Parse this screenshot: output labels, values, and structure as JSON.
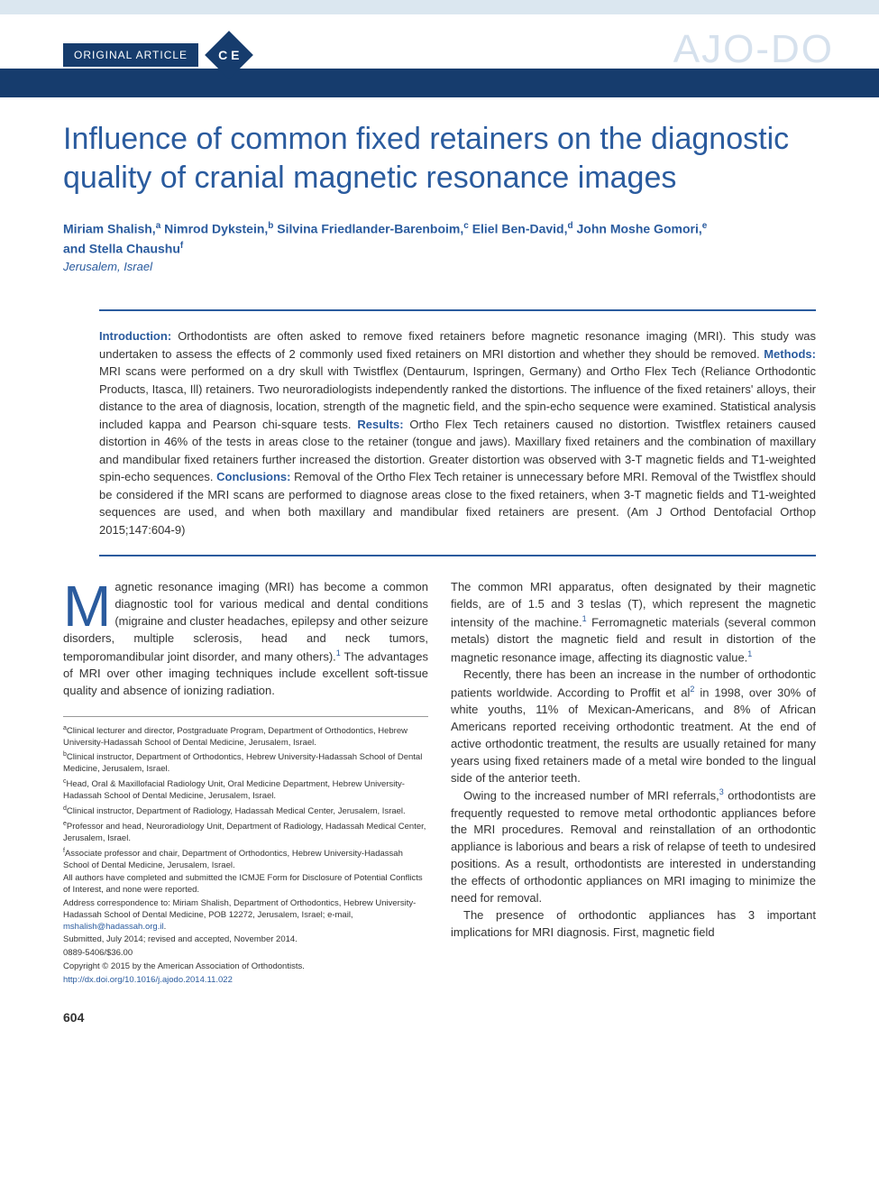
{
  "colors": {
    "brand_blue": "#163c6d",
    "text_blue": "#2a5b9e",
    "light_blue": "#dbe7f0",
    "logo_ghost": "#d6e1ed"
  },
  "header": {
    "article_type": "ORIGINAL ARTICLE",
    "ce_badge": "C E",
    "journal_logo": "AJO-DO"
  },
  "title": "Influence of common fixed retainers on the diagnostic quality of cranial magnetic resonance images",
  "authors_line1": "Miriam Shalish,",
  "authors_sup1": "a",
  "authors_line2": " Nimrod Dykstein,",
  "authors_sup2": "b",
  "authors_line3": " Silvina Friedlander-Barenboim,",
  "authors_sup3": "c",
  "authors_line4": " Eliel Ben-David,",
  "authors_sup4": "d",
  "authors_line5": " John Moshe Gomori,",
  "authors_sup5": "e",
  "authors_line6": "and Stella Chaushu",
  "authors_sup6": "f",
  "affil_city": "Jerusalem, Israel",
  "abstract": {
    "intro_label": "Introduction: ",
    "intro": "Orthodontists are often asked to remove fixed retainers before magnetic resonance imaging (MRI). This study was undertaken to assess the effects of 2 commonly used fixed retainers on MRI distortion and whether they should be removed. ",
    "methods_label": "Methods: ",
    "methods": "MRI scans were performed on a dry skull with Twistflex (Dentaurum, Ispringen, Germany) and Ortho Flex Tech (Reliance Orthodontic Products, Itasca, Ill) retainers. Two neuroradiologists independently ranked the distortions. The influence of the fixed retainers' alloys, their distance to the area of diagnosis, location, strength of the magnetic field, and the spin-echo sequence were examined. Statistical analysis included kappa and Pearson chi-square tests. ",
    "results_label": "Results: ",
    "results": "Ortho Flex Tech retainers caused no distortion. Twistflex retainers caused distortion in 46% of the tests in areas close to the retainer (tongue and jaws). Maxillary fixed retainers and the combination of maxillary and mandibular fixed retainers further increased the distortion. Greater distortion was observed with 3-T magnetic fields and T1-weighted spin-echo sequences. ",
    "concl_label": "Conclusions: ",
    "concl": "Removal of the Ortho Flex Tech retainer is unnecessary before MRI. Removal of the Twistflex should be considered if the MRI scans are performed to diagnose areas close to the fixed retainers, when 3-T magnetic fields and T1-weighted sequences are used, and when both maxillary and mandibular fixed retainers are present. (Am J Orthod Dentofacial Orthop 2015;147:604-9)"
  },
  "body": {
    "p1_dropcap": "M",
    "p1": "agnetic resonance imaging (MRI) has become a common diagnostic tool for various medical and dental conditions (migraine and cluster headaches, epilepsy and other seizure disorders, multiple sclerosis, head and neck tumors, temporomandibular joint disorder, and many others).",
    "p1_after": " The advantages of MRI over other imaging techniques include excellent soft-tissue quality and absence of ionizing radiation.",
    "p2a": "The common MRI apparatus, often designated by their magnetic fields, are of 1.5 and 3 teslas (T), which represent the magnetic intensity of the machine.",
    "p2b": " Ferromagnetic materials (several common metals) distort the magnetic field and result in distortion of the magnetic resonance image, affecting its diagnostic value.",
    "p3a": "Recently, there has been an increase in the number of orthodontic patients worldwide. According to Proffit et al",
    "p3b": " in 1998, over 30% of white youths, 11% of Mexican-Americans, and 8% of African Americans reported receiving orthodontic treatment. At the end of active orthodontic treatment, the results are usually retained for many years using fixed retainers made of a metal wire bonded to the lingual side of the anterior teeth.",
    "p4a": "Owing to the increased number of MRI referrals,",
    "p4b": " orthodontists are frequently requested to remove metal orthodontic appliances before the MRI procedures. Removal and reinstallation of an orthodontic appliance is laborious and bears a risk of relapse of teeth to undesired positions. As a result, orthodontists are interested in understanding the effects of orthodontic appliances on MRI imaging to minimize the need for removal.",
    "p5": "The presence of orthodontic appliances has 3 important implications for MRI diagnosis. First, magnetic field"
  },
  "refs": {
    "r1": "1",
    "r2": "2",
    "r3": "3"
  },
  "footnotes": {
    "a": "Clinical lecturer and director, Postgraduate Program, Department of Orthodontics, Hebrew University-Hadassah School of Dental Medicine, Jerusalem, Israel.",
    "b": "Clinical instructor, Department of Orthodontics, Hebrew University-Hadassah School of Dental Medicine, Jerusalem, Israel.",
    "c": "Head, Oral & Maxillofacial Radiology Unit, Oral Medicine Department, Hebrew University-Hadassah School of Dental Medicine, Jerusalem, Israel.",
    "d": "Clinical instructor, Department of Radiology, Hadassah Medical Center, Jerusalem, Israel.",
    "e": "Professor and head, Neuroradiology Unit, Department of Radiology, Hadassah Medical Center, Jerusalem, Israel.",
    "f": "Associate professor and chair, Department of Orthodontics, Hebrew University-Hadassah School of Dental Medicine, Jerusalem, Israel.",
    "disclosure": "All authors have completed and submitted the ICMJE Form for Disclosure of Potential Conflicts of Interest, and none were reported.",
    "correspondence": "Address correspondence to: Miriam Shalish, Department of Orthodontics, Hebrew University-Hadassah School of Dental Medicine, POB 12272, Jerusalem, Israel; e-mail, ",
    "email": "mshalish@hadassah.org.il",
    "submitted": "Submitted, July 2014; revised and accepted, November 2014.",
    "issn": "0889-5406/$36.00",
    "copyright": "Copyright © 2015 by the American Association of Orthodontists.",
    "doi": "http://dx.doi.org/10.1016/j.ajodo.2014.11.022"
  },
  "page_number": "604"
}
